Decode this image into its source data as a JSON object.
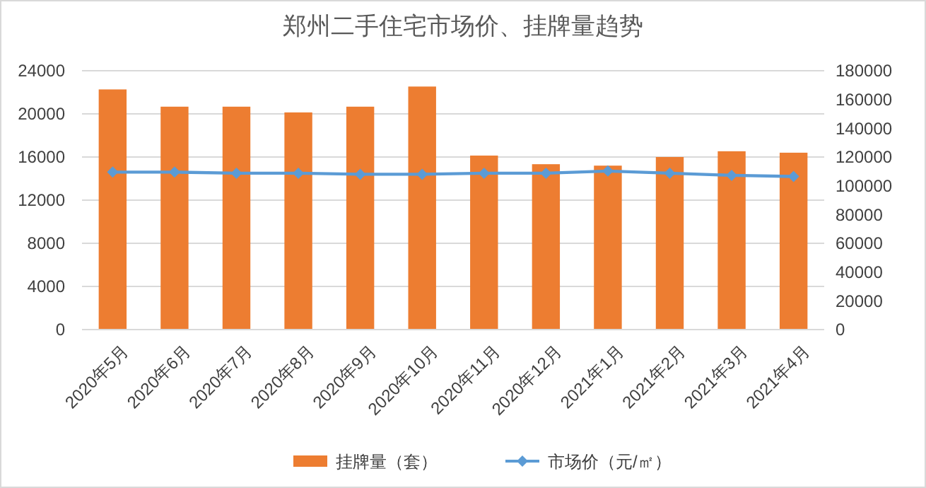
{
  "chart_data": {
    "type": "bar",
    "title": "郑州二手住宅市场价、挂牌量趋势",
    "categories": [
      "2020年5月",
      "2020年6月",
      "2020年7月",
      "2020年8月",
      "2020年9月",
      "2020年10月",
      "2020年11月",
      "2020年12月",
      "2021年1月",
      "2021年2月",
      "2021年3月",
      "2021年4月"
    ],
    "series": [
      {
        "name": "挂牌量（套）",
        "axis": "y2",
        "color": "#ed7d31",
        "values": [
          167000,
          155000,
          155000,
          151000,
          155000,
          169000,
          121000,
          115000,
          114000,
          120000,
          124000,
          123000
        ]
      },
      {
        "name": "市场价（元/㎡）",
        "type": "line",
        "axis": "y",
        "color": "#5b9bd5",
        "marker": "diamond",
        "values": [
          14600,
          14600,
          14500,
          14500,
          14400,
          14400,
          14500,
          14500,
          14700,
          14500,
          14300,
          14200
        ]
      }
    ],
    "ylim": [
      0,
      24000
    ],
    "yticks": [
      0,
      4000,
      8000,
      12000,
      16000,
      20000,
      24000
    ],
    "y2lim": [
      0,
      180000
    ],
    "y2ticks": [
      0,
      20000,
      40000,
      60000,
      80000,
      100000,
      120000,
      140000,
      160000,
      180000
    ],
    "grid": "y",
    "legend": "bottom"
  }
}
